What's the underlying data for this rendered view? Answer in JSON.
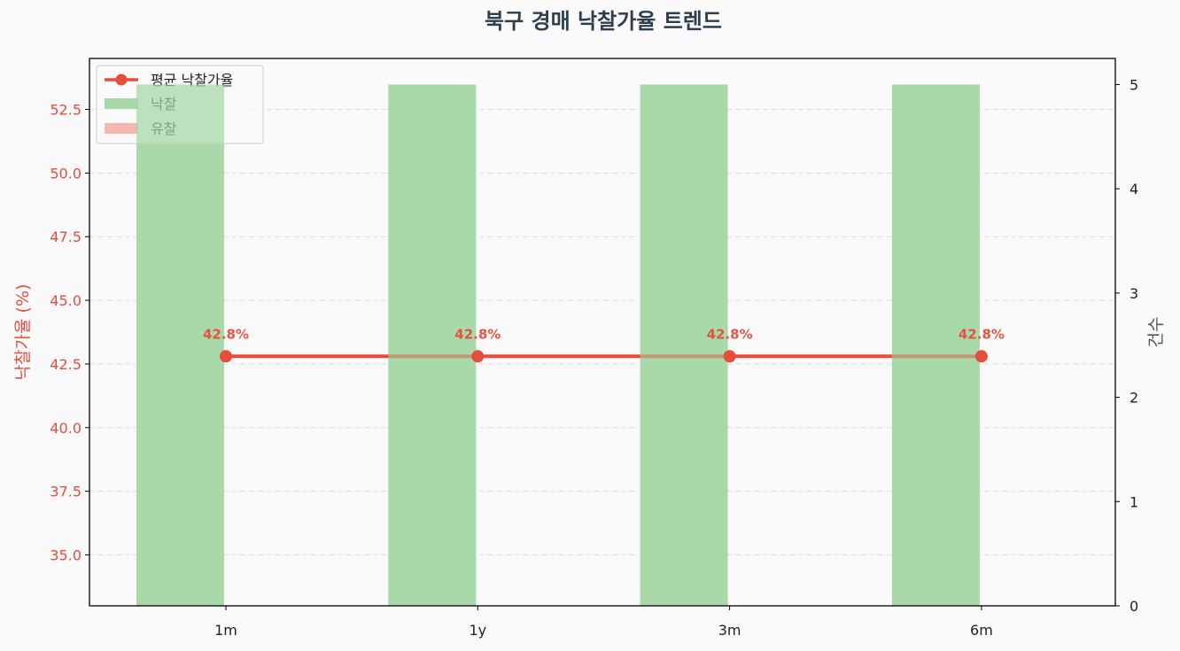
{
  "chart_data": {
    "type": "bar+line",
    "title": "북구 경매 낙찰가율 트렌드",
    "categories": [
      "1m",
      "1y",
      "3m",
      "6m"
    ],
    "y_left": {
      "label": "낙찰가율 (%)",
      "lim": [
        33.0,
        54.5
      ],
      "ticks": [
        35.0,
        37.5,
        40.0,
        42.5,
        45.0,
        47.5,
        50.0,
        52.5
      ]
    },
    "y_right": {
      "label": "건수",
      "lim": [
        0,
        5.25
      ],
      "ticks": [
        0,
        1,
        2,
        3,
        4,
        5
      ]
    },
    "line_series": {
      "name": "평균 낙찰가율",
      "values": [
        42.8,
        42.8,
        42.8,
        42.8
      ],
      "labels": [
        "42.8%",
        "42.8%",
        "42.8%",
        "42.8%"
      ],
      "color": "#e74c3c",
      "axis": "left"
    },
    "bar_series": [
      {
        "name": "낙찰",
        "values": [
          5,
          5,
          5,
          5
        ],
        "color": "#a8d8a8",
        "axis": "right"
      },
      {
        "name": "유찰",
        "values": [
          0,
          0,
          0,
          0
        ],
        "color": "#f4b8b0",
        "axis": "right"
      }
    ],
    "grid": true,
    "legend": "top-left",
    "colors": {
      "title": "#2c3e50",
      "left_axis": "#e74c3c",
      "right_axis": "#555555",
      "tick": "#222222"
    }
  }
}
